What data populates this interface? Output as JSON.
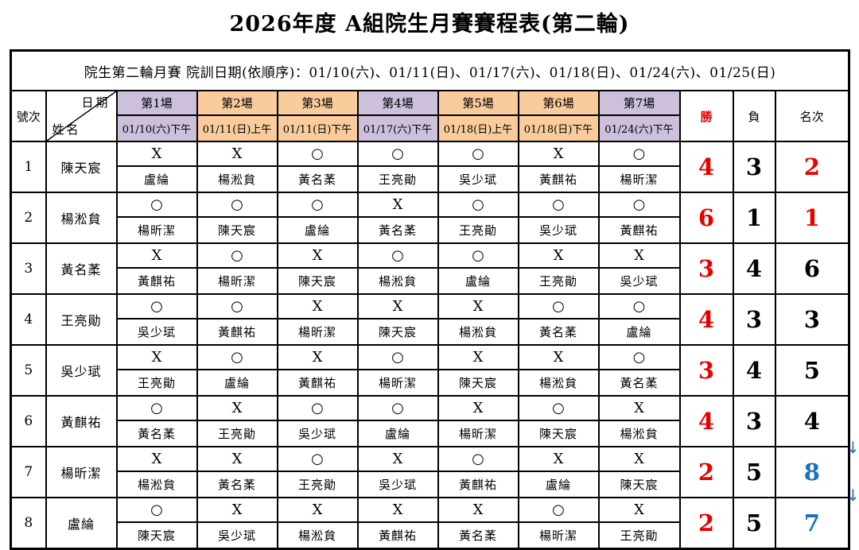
{
  "title": "2026年度 A組院生月賽賽程表(第二輪)",
  "banner": "院生第二輪月賽 院訓日期(依順序)：01/10(六)、01/11(日)、01/17(六)、01/18(日)、01/24(六)、01/25(日)",
  "colors": {
    "header_purple": "#ccc0da",
    "header_orange": "#facc9c",
    "win_red": "#e80000",
    "demote_blue": "#1d70c0"
  },
  "header": {
    "row_no_label": "號次",
    "diagonal_top": "日期",
    "diagonal_bottom": "姓名",
    "wins_label": "勝",
    "losses_label": "負",
    "rank_label": "名次",
    "rounds": [
      {
        "label": "第1場",
        "date": "01/10(六)下午",
        "theme": "purple"
      },
      {
        "label": "第2場",
        "date": "01/11(日)上午",
        "theme": "orange"
      },
      {
        "label": "第3場",
        "date": "01/11(日)下午",
        "theme": "orange"
      },
      {
        "label": "第4場",
        "date": "01/17(六)下午",
        "theme": "purple"
      },
      {
        "label": "第5場",
        "date": "01/18(日)上午",
        "theme": "orange"
      },
      {
        "label": "第6場",
        "date": "01/18(日)下午",
        "theme": "orange"
      },
      {
        "label": "第7場",
        "date": "01/24(六)下午",
        "theme": "purple"
      }
    ]
  },
  "players": [
    {
      "no": "1",
      "name": "陳天宸",
      "results": [
        "X",
        "X",
        "○",
        "○",
        "○",
        "X",
        "○"
      ],
      "opponents": [
        "盧綸",
        "楊淞貟",
        "黃名葇",
        "王亮勛",
        "吳少珷",
        "黃麒祐",
        "楊昕潔"
      ],
      "wins": "4",
      "losses": "3",
      "rank": "2",
      "rank_color": "red",
      "arrow": ""
    },
    {
      "no": "2",
      "name": "楊淞貟",
      "results": [
        "○",
        "○",
        "○",
        "X",
        "○",
        "○",
        "○"
      ],
      "opponents": [
        "楊昕潔",
        "陳天宸",
        "盧綸",
        "黃名葇",
        "王亮勛",
        "吳少珷",
        "黃麒祐"
      ],
      "wins": "6",
      "losses": "1",
      "rank": "1",
      "rank_color": "red",
      "arrow": ""
    },
    {
      "no": "3",
      "name": "黃名葇",
      "results": [
        "X",
        "○",
        "X",
        "○",
        "○",
        "X",
        "X"
      ],
      "opponents": [
        "黃麒祐",
        "楊昕潔",
        "陳天宸",
        "楊淞貟",
        "盧綸",
        "王亮勛",
        "吳少珷"
      ],
      "wins": "3",
      "losses": "4",
      "rank": "6",
      "rank_color": "black",
      "arrow": ""
    },
    {
      "no": "4",
      "name": "王亮勛",
      "results": [
        "○",
        "○",
        "X",
        "X",
        "X",
        "○",
        "○"
      ],
      "opponents": [
        "吳少珷",
        "黃麒祐",
        "楊昕潔",
        "陳天宸",
        "楊淞貟",
        "黃名葇",
        "盧綸"
      ],
      "wins": "4",
      "losses": "3",
      "rank": "3",
      "rank_color": "black",
      "arrow": ""
    },
    {
      "no": "5",
      "name": "吳少珷",
      "results": [
        "X",
        "○",
        "X",
        "○",
        "X",
        "X",
        "○"
      ],
      "opponents": [
        "王亮勛",
        "盧綸",
        "黃麒祐",
        "楊昕潔",
        "陳天宸",
        "楊淞貟",
        "黃名葇"
      ],
      "wins": "3",
      "losses": "4",
      "rank": "5",
      "rank_color": "black",
      "arrow": ""
    },
    {
      "no": "6",
      "name": "黃麒祐",
      "results": [
        "○",
        "X",
        "○",
        "○",
        "X",
        "○",
        "X"
      ],
      "opponents": [
        "黃名葇",
        "王亮勛",
        "吳少珷",
        "盧綸",
        "楊昕潔",
        "陳天宸",
        "楊淞貟"
      ],
      "wins": "4",
      "losses": "3",
      "rank": "4",
      "rank_color": "black",
      "arrow": ""
    },
    {
      "no": "7",
      "name": "楊昕潔",
      "results": [
        "X",
        "X",
        "○",
        "X",
        "○",
        "X",
        "X"
      ],
      "opponents": [
        "楊淞貟",
        "黃名葇",
        "王亮勛",
        "吳少珷",
        "黃麒祐",
        "盧綸",
        "陳天宸"
      ],
      "wins": "2",
      "losses": "5",
      "rank": "8",
      "rank_color": "blue",
      "arrow": "↓"
    },
    {
      "no": "8",
      "name": "盧綸",
      "results": [
        "○",
        "X",
        "X",
        "X",
        "X",
        "○",
        "X"
      ],
      "opponents": [
        "陳天宸",
        "吳少珷",
        "楊淞貟",
        "黃麒祐",
        "黃名葇",
        "楊昕潔",
        "王亮勛"
      ],
      "wins": "2",
      "losses": "5",
      "rank": "7",
      "rank_color": "blue",
      "arrow": "↓"
    }
  ]
}
